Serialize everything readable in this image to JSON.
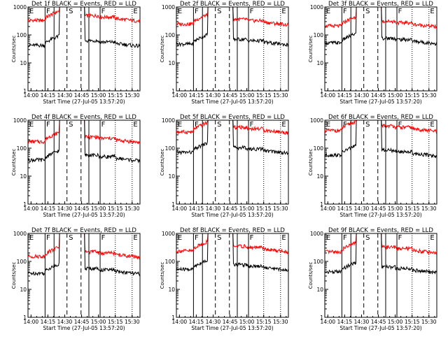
{
  "chart_data": {
    "type": "line",
    "ylabel": "Counts/sec",
    "xlabel": "Start Time (27-Jul-05 13:57:20)",
    "x_ticks": [
      "14:00",
      "14:15",
      "14:30",
      "14:45",
      "15:00",
      "15:15",
      "15:30"
    ],
    "y_ticks": [
      "1",
      "10",
      "100",
      "1000"
    ],
    "y_scale": "log",
    "ylim": [
      1,
      1000
    ],
    "series_colors": {
      "events": "#000000",
      "lld": "#ff0000"
    },
    "markers": [
      "E",
      "F",
      "S",
      "F",
      "E"
    ],
    "panels": [
      {
        "title": "Det 1f BLACK = Events, RED = LLD",
        "events_level": 45,
        "lld_level": 350,
        "spike_events": 1000,
        "spike_lld": 1000
      },
      {
        "title": "Det 2f BLACK = Events, RED = LLD",
        "events_level": 50,
        "lld_level": 260,
        "spike_events": 1000,
        "spike_lld": 1000
      },
      {
        "title": "Det 3f BLACK = Events, RED = LLD",
        "events_level": 55,
        "lld_level": 220,
        "spike_events": 1000,
        "spike_lld": 1000
      },
      {
        "title": "Det 4f BLACK = Events, RED = LLD",
        "events_level": 40,
        "lld_level": 180,
        "spike_events": 1000,
        "spike_lld": 1000
      },
      {
        "title": "Det 5f BLACK = Events, RED = LLD",
        "events_level": 75,
        "lld_level": 400,
        "spike_events": 1000,
        "spike_lld": 1000
      },
      {
        "title": "Det 6f BLACK = Events, RED = LLD",
        "events_level": 60,
        "lld_level": 450,
        "spike_events": 1000,
        "spike_lld": 1000
      },
      {
        "title": "Det 7f BLACK = Events, RED = LLD",
        "events_level": 40,
        "lld_level": 160,
        "spike_events": 1000,
        "spike_lld": 1000
      },
      {
        "title": "Det 8f BLACK = Events, RED = LLD",
        "events_level": 55,
        "lld_level": 250,
        "spike_events": 1000,
        "spike_lld": 1000
      },
      {
        "title": "Det 9f BLACK = Events, RED = LLD",
        "events_level": 45,
        "lld_level": 230,
        "spike_events": 1000,
        "spike_lld": 1000
      }
    ]
  }
}
